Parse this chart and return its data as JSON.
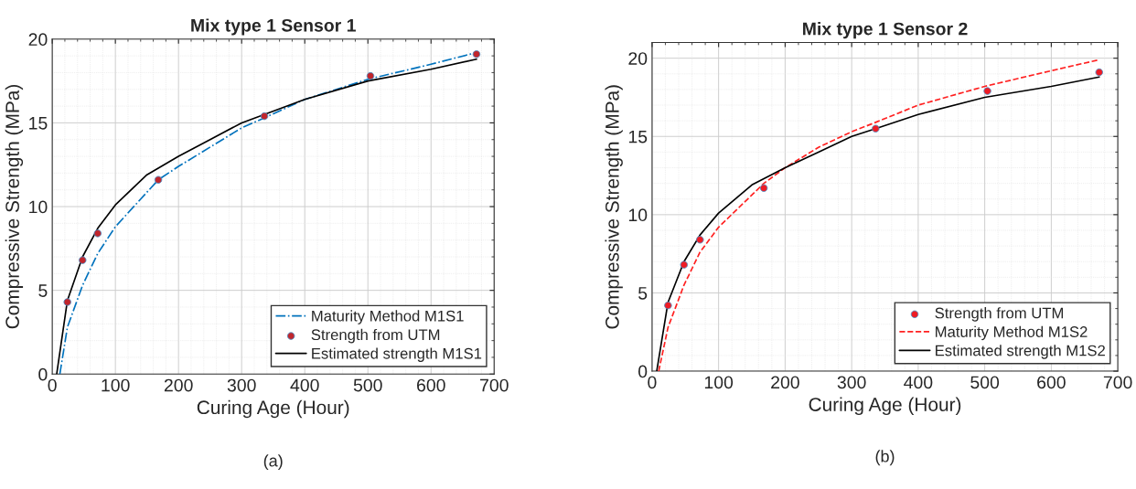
{
  "chart_data": [
    {
      "type": "line",
      "title": "Mix type 1 Sensor 1",
      "xlabel": "Curing Age (Hour)",
      "ylabel": "Compressive Strength (MPa)",
      "xlim": [
        0,
        700
      ],
      "ylim": [
        0,
        20
      ],
      "xticks": [
        0,
        100,
        200,
        300,
        400,
        500,
        600,
        700
      ],
      "yticks": [
        0,
        5,
        10,
        15,
        20
      ],
      "grid": true,
      "legend": "bottom right",
      "annotations": [
        "(a)"
      ],
      "series": [
        {
          "name": "Maturity Method M1S1",
          "color": "#0072bd",
          "line_style": "dashdot",
          "marker": "none",
          "x": [
            12,
            24,
            48,
            72,
            100,
            168,
            200,
            300,
            336,
            400,
            500,
            600,
            672
          ],
          "values": [
            0,
            2.8,
            5.3,
            7.2,
            8.8,
            11.6,
            12.4,
            14.7,
            15.3,
            16.4,
            17.6,
            18.5,
            19.2
          ]
        },
        {
          "name": "Strength from UTM",
          "type": "scatter",
          "color": "#c0262d",
          "marker": "circle",
          "x": [
            24,
            48,
            72,
            168,
            336,
            504,
            672
          ],
          "values": [
            4.3,
            6.8,
            8.4,
            11.6,
            15.4,
            17.8,
            19.1
          ]
        },
        {
          "name": "Estimated strength M1S1",
          "color": "#000000",
          "line_style": "solid",
          "marker": "none",
          "x": [
            7,
            24,
            48,
            72,
            100,
            150,
            200,
            250,
            300,
            336,
            400,
            500,
            600,
            672
          ],
          "values": [
            0,
            4.4,
            7.0,
            8.7,
            10.1,
            11.9,
            13.0,
            14.0,
            15.0,
            15.5,
            16.4,
            17.5,
            18.2,
            18.8
          ]
        }
      ]
    },
    {
      "type": "line",
      "title": "Mix type 1 Sensor 2",
      "xlabel": "Curing Age (Hour)",
      "ylabel": "Compressive Strength (MPa)",
      "xlim": [
        0,
        700
      ],
      "ylim": [
        0,
        21
      ],
      "xticks": [
        0,
        100,
        200,
        300,
        400,
        500,
        600,
        700
      ],
      "yticks": [
        0,
        5,
        10,
        15,
        20
      ],
      "grid": true,
      "legend": "bottom right",
      "annotations": [
        "(b)"
      ],
      "series": [
        {
          "name": "Strength from UTM",
          "type": "scatter",
          "color": "#ee1c25",
          "marker": "circle",
          "x": [
            24,
            48,
            72,
            168,
            336,
            504,
            672
          ],
          "values": [
            4.2,
            6.8,
            8.4,
            11.7,
            15.5,
            17.9,
            19.1
          ]
        },
        {
          "name": "Maturity Method M1S2",
          "color": "#ff2020",
          "line_style": "dashed",
          "marker": "none",
          "x": [
            10,
            24,
            48,
            72,
            100,
            168,
            200,
            250,
            300,
            336,
            400,
            500,
            600,
            672
          ],
          "values": [
            0,
            2.8,
            5.5,
            7.6,
            9.2,
            12.0,
            13.0,
            14.3,
            15.3,
            15.9,
            17.0,
            18.2,
            19.2,
            19.9
          ]
        },
        {
          "name": "Estimated strength M1S2",
          "color": "#000000",
          "line_style": "solid",
          "marker": "none",
          "x": [
            7,
            24,
            48,
            72,
            100,
            150,
            200,
            250,
            300,
            336,
            400,
            500,
            600,
            672
          ],
          "values": [
            0,
            4.4,
            7.0,
            8.7,
            10.1,
            11.9,
            13.0,
            14.0,
            15.0,
            15.5,
            16.4,
            17.5,
            18.2,
            18.8
          ]
        }
      ]
    }
  ]
}
